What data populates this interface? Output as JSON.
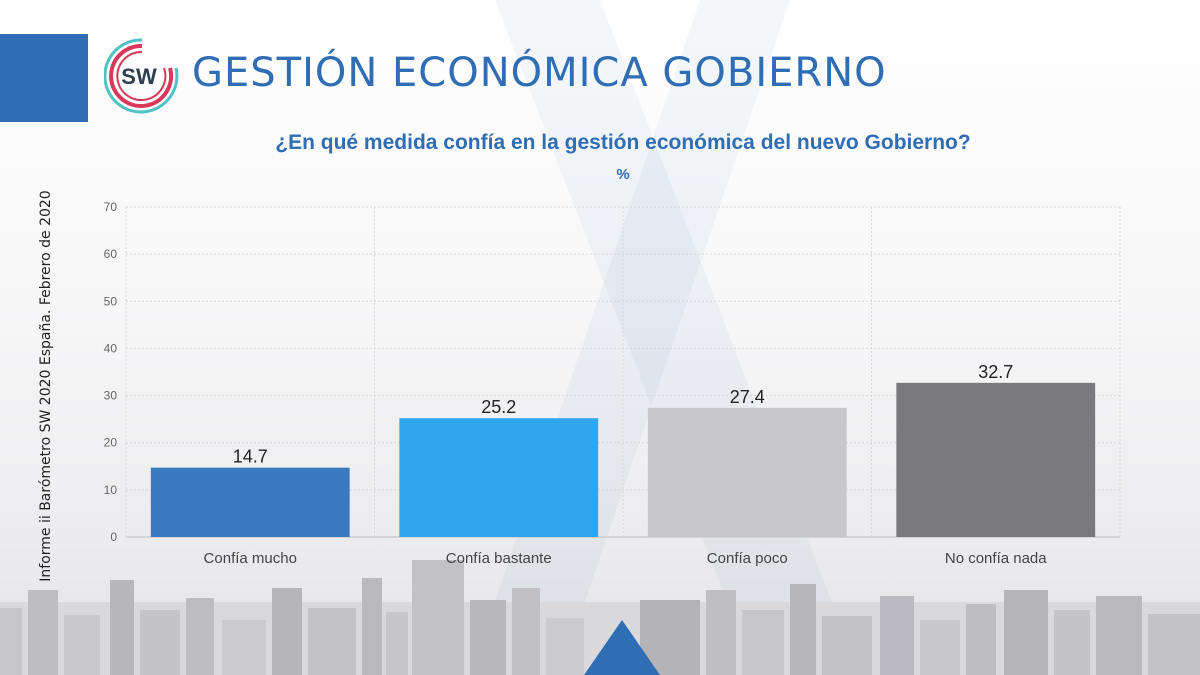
{
  "header": {
    "title": "GESTIÓN ECONÓMICA GOBIERNO",
    "logo_text": "SW"
  },
  "side_caption": "Informe ii Barómetro SW 2020 España. Febrero de 2020",
  "colors": {
    "brand_blue": "#2f6db5",
    "logo_red": "#d7385a",
    "logo_teal": "#4fc2c4"
  },
  "chart_data": {
    "type": "bar",
    "title": "¿En qué medida confía en la gestión económica del nuevo Gobierno?",
    "subtitle": "%",
    "categories": [
      "Confía mucho",
      "Confía bastante",
      "Confía poco",
      "No confía nada"
    ],
    "values": [
      14.7,
      25.2,
      27.4,
      32.7
    ],
    "bar_colors": [
      "#3a78bf",
      "#2fa6ee",
      "#c8c7cc",
      "#7a797c"
    ],
    "ylim": [
      0,
      70
    ],
    "yticks": [
      0,
      10,
      20,
      30,
      40,
      50,
      60,
      70
    ],
    "grid": true,
    "legend": "none"
  }
}
